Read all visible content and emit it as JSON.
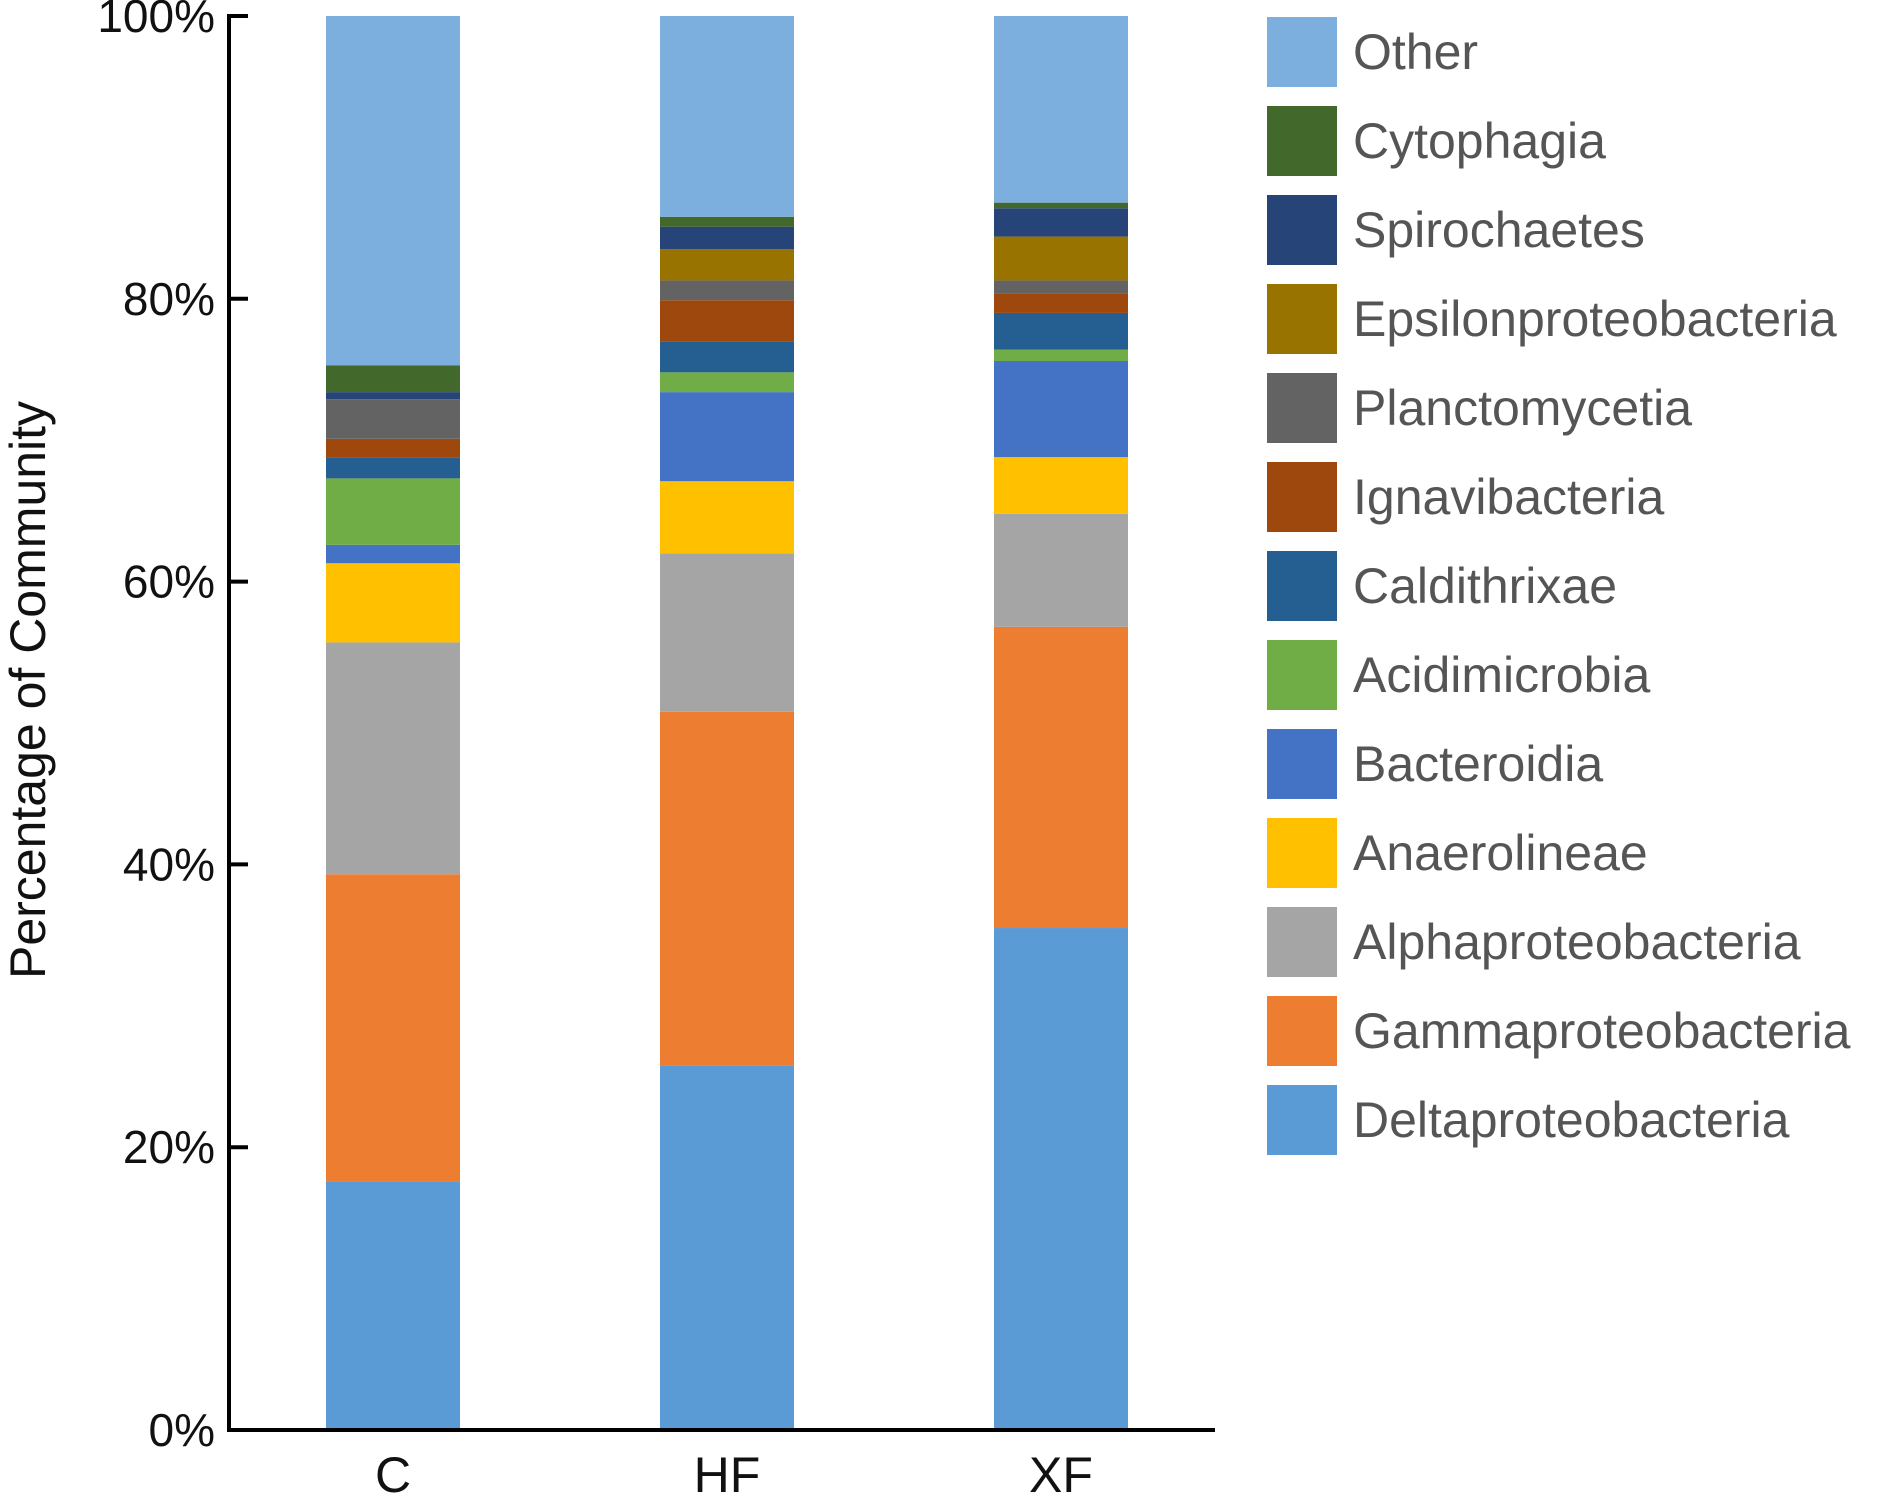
{
  "chart_data": {
    "type": "bar",
    "stacked": true,
    "title": "",
    "xlabel": "",
    "ylabel": "Percentage of Community",
    "ylim": [
      0,
      100
    ],
    "y_ticks": [
      "0%",
      "20%",
      "40%",
      "60%",
      "80%",
      "100%"
    ],
    "categories": [
      "C",
      "HF",
      "XF"
    ],
    "legend_position": "right",
    "series": [
      {
        "name": "Deltaproteobacteria",
        "color": "#5B9BD5",
        "values": [
          17.6,
          25.8,
          35.5
        ]
      },
      {
        "name": "Gammaproteobacteria",
        "color": "#ED7D31",
        "values": [
          21.7,
          25.0,
          21.3
        ]
      },
      {
        "name": "Alphaproteobacteria",
        "color": "#A5A5A5",
        "values": [
          16.4,
          11.2,
          8.0
        ]
      },
      {
        "name": "Anaerolineae",
        "color": "#FFC000",
        "values": [
          5.6,
          5.1,
          4.0
        ]
      },
      {
        "name": "Bacteroidia",
        "color": "#4472C4",
        "values": [
          1.3,
          6.3,
          6.8
        ]
      },
      {
        "name": "Acidimicrobia",
        "color": "#70AD47",
        "values": [
          4.7,
          1.4,
          0.8
        ]
      },
      {
        "name": "Caldithrixae",
        "color": "#255E91",
        "values": [
          1.5,
          2.2,
          2.6
        ]
      },
      {
        "name": "Ignavibacteria",
        "color": "#9E480E",
        "values": [
          1.3,
          2.9,
          1.4
        ]
      },
      {
        "name": "Planctomycetia",
        "color": "#636363",
        "values": [
          2.8,
          1.4,
          0.9
        ]
      },
      {
        "name": "Epsilonproteobacteria",
        "color": "#997300",
        "values": [
          0.0,
          2.2,
          3.1
        ]
      },
      {
        "name": "Spirochaetes",
        "color": "#264478",
        "values": [
          0.5,
          1.6,
          2.0
        ]
      },
      {
        "name": "Cytophagia",
        "color": "#43682B",
        "values": [
          1.9,
          0.7,
          0.4
        ]
      },
      {
        "name": "Other",
        "color": "#7CAFDD",
        "values": [
          24.7,
          14.2,
          13.2
        ]
      }
    ]
  }
}
